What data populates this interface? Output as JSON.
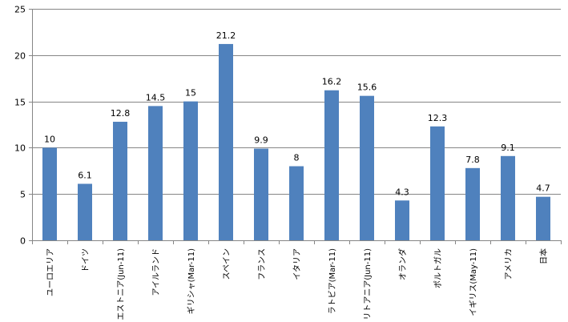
{
  "chart_data": {
    "type": "bar",
    "categories": [
      "ユーロエリア",
      "ドイツ",
      "エストニア(Jun-11)",
      "アイルランド",
      "ギリシャ(Mar-11)",
      "スペイン",
      "フランス",
      "イタリア",
      "ラトビア(Mar-11)",
      "リトアニア(Jun-11)",
      "オランダ",
      "ポルトガル",
      "イギリス(May-11)",
      "アメリカ",
      "日本"
    ],
    "values": [
      10,
      6.1,
      12.8,
      14.5,
      15,
      21.2,
      9.9,
      8,
      16.2,
      15.6,
      4.3,
      12.3,
      7.8,
      9.1,
      4.7
    ],
    "data_labels": [
      "10",
      "6.1",
      "12.8",
      "14.5",
      "15",
      "21.2",
      "9.9",
      "8",
      "16.2",
      "15.6",
      "4.3",
      "12.3",
      "7.8",
      "9.1",
      "4.7"
    ],
    "title": "",
    "xlabel": "",
    "ylabel": "",
    "ylim": [
      0,
      25
    ],
    "yticks": [
      "0",
      "5",
      "10",
      "15",
      "20",
      "25"
    ],
    "grid": true,
    "legend": "none",
    "bar_color": "#4f81bd",
    "grid_color": "#868686"
  }
}
